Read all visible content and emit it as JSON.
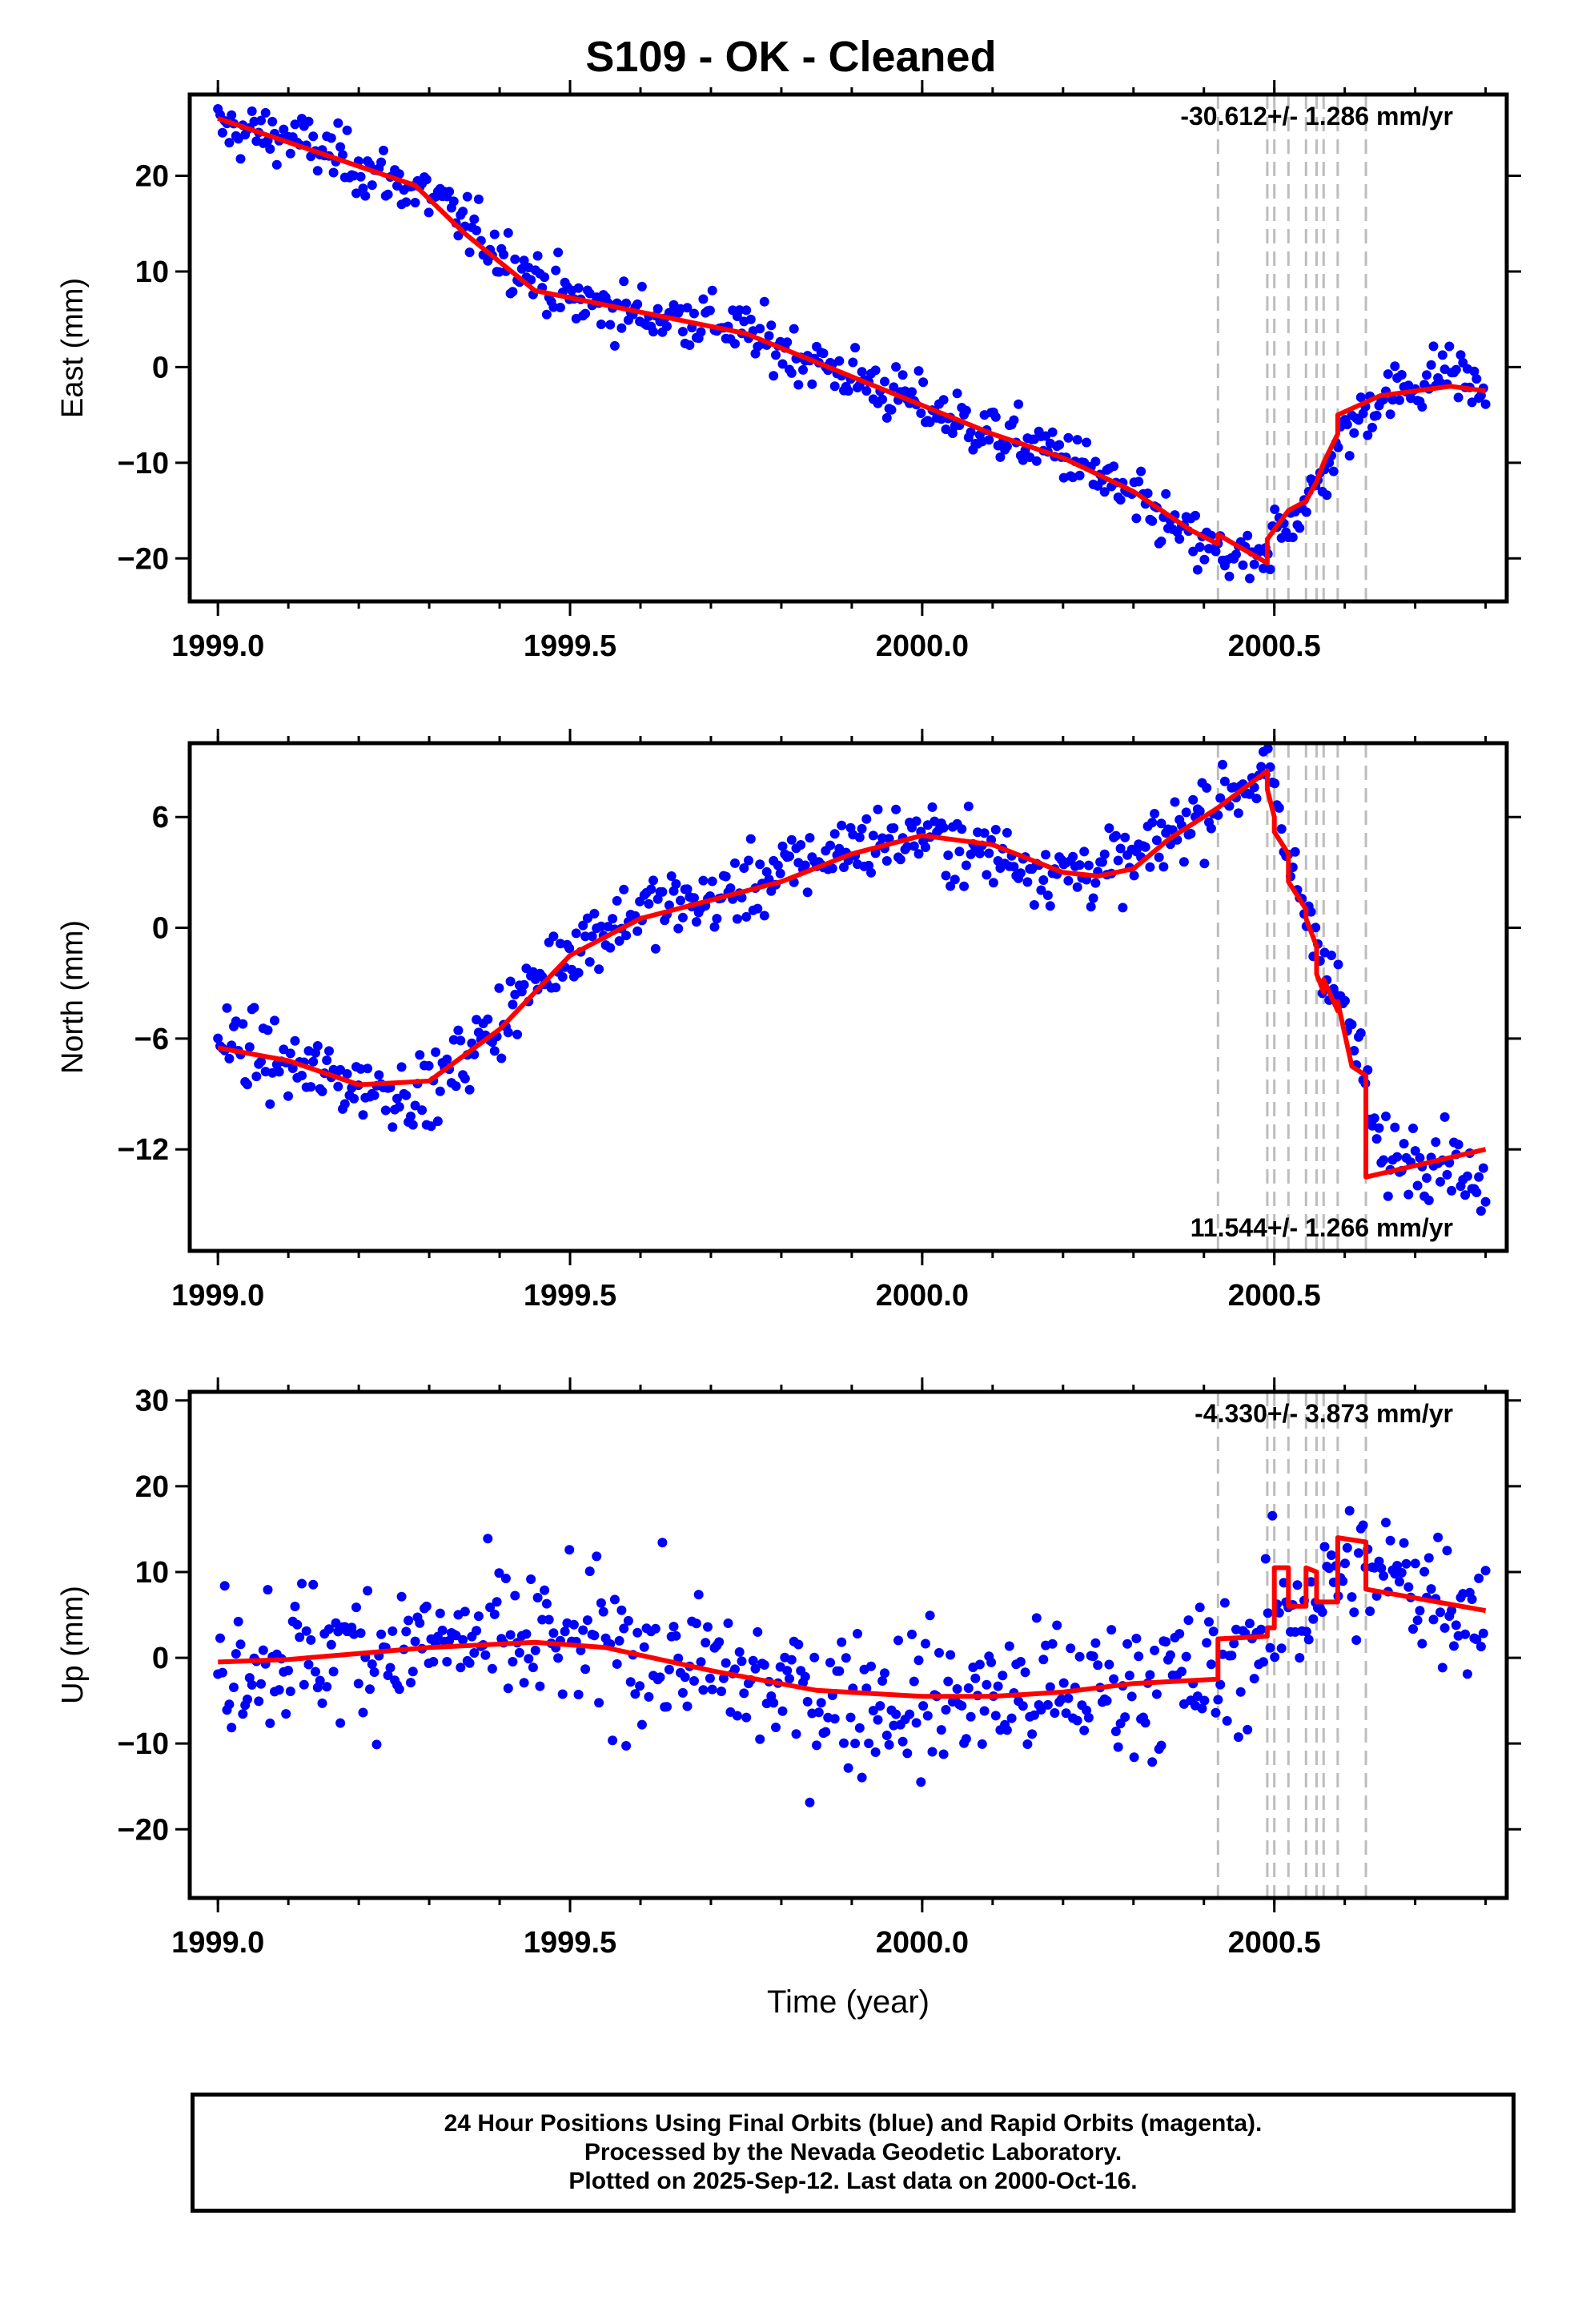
{
  "title": "S109  - OK - Cleaned",
  "footer": {
    "line1": "24 Hour Positions Using Final Orbits (blue) and Rapid Orbits (magenta).",
    "line2": "Processed by the Nevada Geodetic Laboratory.",
    "line3": "Plotted on 2025-Sep-12. Last data on 2000-Oct-16."
  },
  "colors": {
    "points": "#0000ff",
    "model": "#ff0000",
    "steps": "#bdbdbd",
    "axes": "#000000"
  },
  "chart_data": [
    {
      "type": "scatter",
      "name": "east",
      "ylabel": "East (mm)",
      "xlabel": "",
      "xlim": [
        1998.96,
        2000.83
      ],
      "ylim": [
        -24.5,
        28.5
      ],
      "xticks": [
        1999.0,
        1999.5,
        2000.0,
        2000.5
      ],
      "xtick_labels": [
        "1999.0",
        "1999.5",
        "2000.0",
        "2000.5"
      ],
      "yticks": [
        -20,
        -10,
        0,
        10,
        20
      ],
      "ytick_labels": [
        "−20",
        "−10",
        "0",
        "10",
        "20"
      ],
      "rate_label": "-30.612+/- 1.286 mm/yr",
      "rate_position": "top-right",
      "step_epochs": [
        2000.42,
        2000.49,
        2000.5,
        2000.52,
        2000.545,
        2000.56,
        2000.57,
        2000.59,
        2000.63
      ],
      "model": [
        [
          1999.0,
          26
        ],
        [
          1999.1,
          23.5
        ],
        [
          1999.2,
          21
        ],
        [
          1999.28,
          19
        ],
        [
          1999.35,
          14
        ],
        [
          1999.45,
          8
        ],
        [
          1999.55,
          6.5
        ],
        [
          1999.65,
          5
        ],
        [
          1999.75,
          3.5
        ],
        [
          1999.85,
          0.5
        ],
        [
          2000.0,
          -4
        ],
        [
          2000.1,
          -7
        ],
        [
          2000.2,
          -9.5
        ],
        [
          2000.3,
          -13
        ],
        [
          2000.38,
          -17
        ],
        [
          2000.42,
          -18.5
        ],
        [
          2000.42,
          -17.5
        ],
        [
          2000.49,
          -20.5
        ],
        [
          2000.49,
          -18
        ],
        [
          2000.5,
          -17
        ],
        [
          2000.52,
          -15
        ],
        [
          2000.545,
          -14
        ],
        [
          2000.56,
          -12
        ],
        [
          2000.57,
          -10
        ],
        [
          2000.59,
          -7
        ],
        [
          2000.59,
          -5
        ],
        [
          2000.62,
          -4
        ],
        [
          2000.65,
          -3
        ],
        [
          2000.7,
          -2.5
        ],
        [
          2000.75,
          -2
        ],
        [
          2000.8,
          -2.5
        ]
      ],
      "anchors": [
        [
          1999.0,
          25
        ],
        [
          1999.1,
          24
        ],
        [
          1999.2,
          21
        ],
        [
          1999.3,
          18
        ],
        [
          1999.4,
          12
        ],
        [
          1999.5,
          7
        ],
        [
          1999.6,
          5.5
        ],
        [
          1999.7,
          5
        ],
        [
          1999.8,
          2
        ],
        [
          1999.9,
          -1
        ],
        [
          2000.0,
          -4
        ],
        [
          2000.1,
          -7
        ],
        [
          2000.2,
          -9
        ],
        [
          2000.3,
          -14
        ],
        [
          2000.4,
          -19
        ],
        [
          2000.49,
          -21
        ],
        [
          2000.5,
          -17
        ],
        [
          2000.55,
          -14
        ],
        [
          2000.6,
          -7
        ],
        [
          2000.65,
          -3
        ],
        [
          2000.7,
          -2
        ],
        [
          2000.75,
          0
        ],
        [
          2000.8,
          -3
        ]
      ],
      "scatter_sd": 2.5,
      "n_points": 560
    },
    {
      "type": "scatter",
      "name": "north",
      "ylabel": "North (mm)",
      "xlabel": "",
      "xlim": [
        1998.96,
        2000.83
      ],
      "ylim": [
        -17.5,
        10
      ],
      "xticks": [
        1999.0,
        1999.5,
        2000.0,
        2000.5
      ],
      "xtick_labels": [
        "1999.0",
        "1999.5",
        "2000.0",
        "2000.5"
      ],
      "yticks": [
        -12,
        -6,
        0,
        6
      ],
      "ytick_labels": [
        "−12",
        "−6",
        "0",
        "6"
      ],
      "rate_label": "11.544+/- 1.266 mm/yr",
      "rate_position": "bottom-right",
      "step_epochs": [
        2000.42,
        2000.49,
        2000.5,
        2000.52,
        2000.545,
        2000.56,
        2000.57,
        2000.59,
        2000.63
      ],
      "model": [
        [
          1999.0,
          -6.5
        ],
        [
          1999.1,
          -7.2
        ],
        [
          1999.2,
          -8.5
        ],
        [
          1999.3,
          -8.3
        ],
        [
          1999.4,
          -5.5
        ],
        [
          1999.5,
          -1.5
        ],
        [
          1999.6,
          0.5
        ],
        [
          1999.7,
          1.5
        ],
        [
          1999.8,
          2.5
        ],
        [
          1999.9,
          4
        ],
        [
          2000.0,
          5
        ],
        [
          2000.1,
          4.5
        ],
        [
          2000.2,
          3
        ],
        [
          2000.25,
          2.8
        ],
        [
          2000.3,
          3.2
        ],
        [
          2000.35,
          4.8
        ],
        [
          2000.42,
          6.5
        ],
        [
          2000.49,
          8.5
        ],
        [
          2000.49,
          7.5
        ],
        [
          2000.5,
          6
        ],
        [
          2000.5,
          5.2
        ],
        [
          2000.52,
          4
        ],
        [
          2000.52,
          2.5
        ],
        [
          2000.545,
          1
        ],
        [
          2000.545,
          0.5
        ],
        [
          2000.56,
          -1
        ],
        [
          2000.56,
          -2.5
        ],
        [
          2000.57,
          -3.5
        ],
        [
          2000.57,
          -2.8
        ],
        [
          2000.59,
          -4.5
        ],
        [
          2000.59,
          -4
        ],
        [
          2000.61,
          -7.5
        ],
        [
          2000.63,
          -8
        ],
        [
          2000.63,
          -13.5
        ],
        [
          2000.8,
          -12
        ]
      ],
      "anchors": [
        [
          1999.0,
          -6
        ],
        [
          1999.1,
          -7.5
        ],
        [
          1999.2,
          -8.5
        ],
        [
          1999.3,
          -9
        ],
        [
          1999.4,
          -5
        ],
        [
          1999.5,
          -1
        ],
        [
          1999.6,
          1
        ],
        [
          1999.7,
          1.5
        ],
        [
          1999.8,
          3
        ],
        [
          1999.9,
          4.5
        ],
        [
          2000.0,
          5
        ],
        [
          2000.1,
          4
        ],
        [
          2000.2,
          3
        ],
        [
          2000.3,
          3.5
        ],
        [
          2000.4,
          6.5
        ],
        [
          2000.49,
          8.5
        ],
        [
          2000.52,
          3.5
        ],
        [
          2000.55,
          0.5
        ],
        [
          2000.6,
          -4.5
        ],
        [
          2000.63,
          -8.5
        ],
        [
          2000.65,
          -12.5
        ],
        [
          2000.75,
          -12
        ],
        [
          2000.8,
          -15
        ]
      ],
      "scatter_sd": 1.6,
      "n_points": 560
    },
    {
      "type": "scatter",
      "name": "up",
      "ylabel": "Up (mm)",
      "xlabel": "Time (year)",
      "xlim": [
        1998.96,
        2000.83
      ],
      "ylim": [
        -28,
        31
      ],
      "xticks": [
        1999.0,
        1999.5,
        2000.0,
        2000.5
      ],
      "xtick_labels": [
        "1999.0",
        "1999.5",
        "2000.0",
        "2000.5"
      ],
      "yticks": [
        -20,
        -10,
        0,
        10,
        20,
        30
      ],
      "ytick_labels": [
        "−20",
        "−10",
        "0",
        "10",
        "20",
        "30"
      ],
      "rate_label": "-4.330+/- 3.873 mm/yr",
      "rate_position": "top-right",
      "step_epochs": [
        2000.42,
        2000.49,
        2000.5,
        2000.52,
        2000.545,
        2000.56,
        2000.57,
        2000.59,
        2000.63
      ],
      "model": [
        [
          1999.0,
          -0.5
        ],
        [
          1999.1,
          -0.2
        ],
        [
          1999.2,
          0.5
        ],
        [
          1999.3,
          1.2
        ],
        [
          1999.45,
          1.8
        ],
        [
          1999.55,
          1.2
        ],
        [
          1999.7,
          -1.5
        ],
        [
          1999.85,
          -3.8
        ],
        [
          2000.0,
          -4.5
        ],
        [
          2000.1,
          -4.5
        ],
        [
          2000.2,
          -4
        ],
        [
          2000.3,
          -3
        ],
        [
          2000.42,
          -2.5
        ],
        [
          2000.42,
          2.2
        ],
        [
          2000.49,
          2.5
        ],
        [
          2000.49,
          3.5
        ],
        [
          2000.5,
          3.5
        ],
        [
          2000.5,
          10.5
        ],
        [
          2000.52,
          10.5
        ],
        [
          2000.52,
          6
        ],
        [
          2000.545,
          6
        ],
        [
          2000.545,
          10.5
        ],
        [
          2000.56,
          10
        ],
        [
          2000.56,
          6.5
        ],
        [
          2000.57,
          6.5
        ],
        [
          2000.57,
          6.5
        ],
        [
          2000.59,
          6.5
        ],
        [
          2000.59,
          14
        ],
        [
          2000.63,
          13.5
        ],
        [
          2000.63,
          8
        ],
        [
          2000.8,
          5.5
        ]
      ],
      "anchors": [
        [
          1999.0,
          0
        ],
        [
          1999.4,
          2
        ],
        [
          1999.6,
          1
        ],
        [
          1999.8,
          -4
        ],
        [
          2000.0,
          -5
        ],
        [
          2000.2,
          -4
        ],
        [
          2000.42,
          -2
        ],
        [
          2000.5,
          4
        ],
        [
          2000.6,
          10
        ],
        [
          2000.7,
          9
        ],
        [
          2000.8,
          5
        ]
      ],
      "scatter_sd": 7,
      "n_points": 560
    }
  ]
}
